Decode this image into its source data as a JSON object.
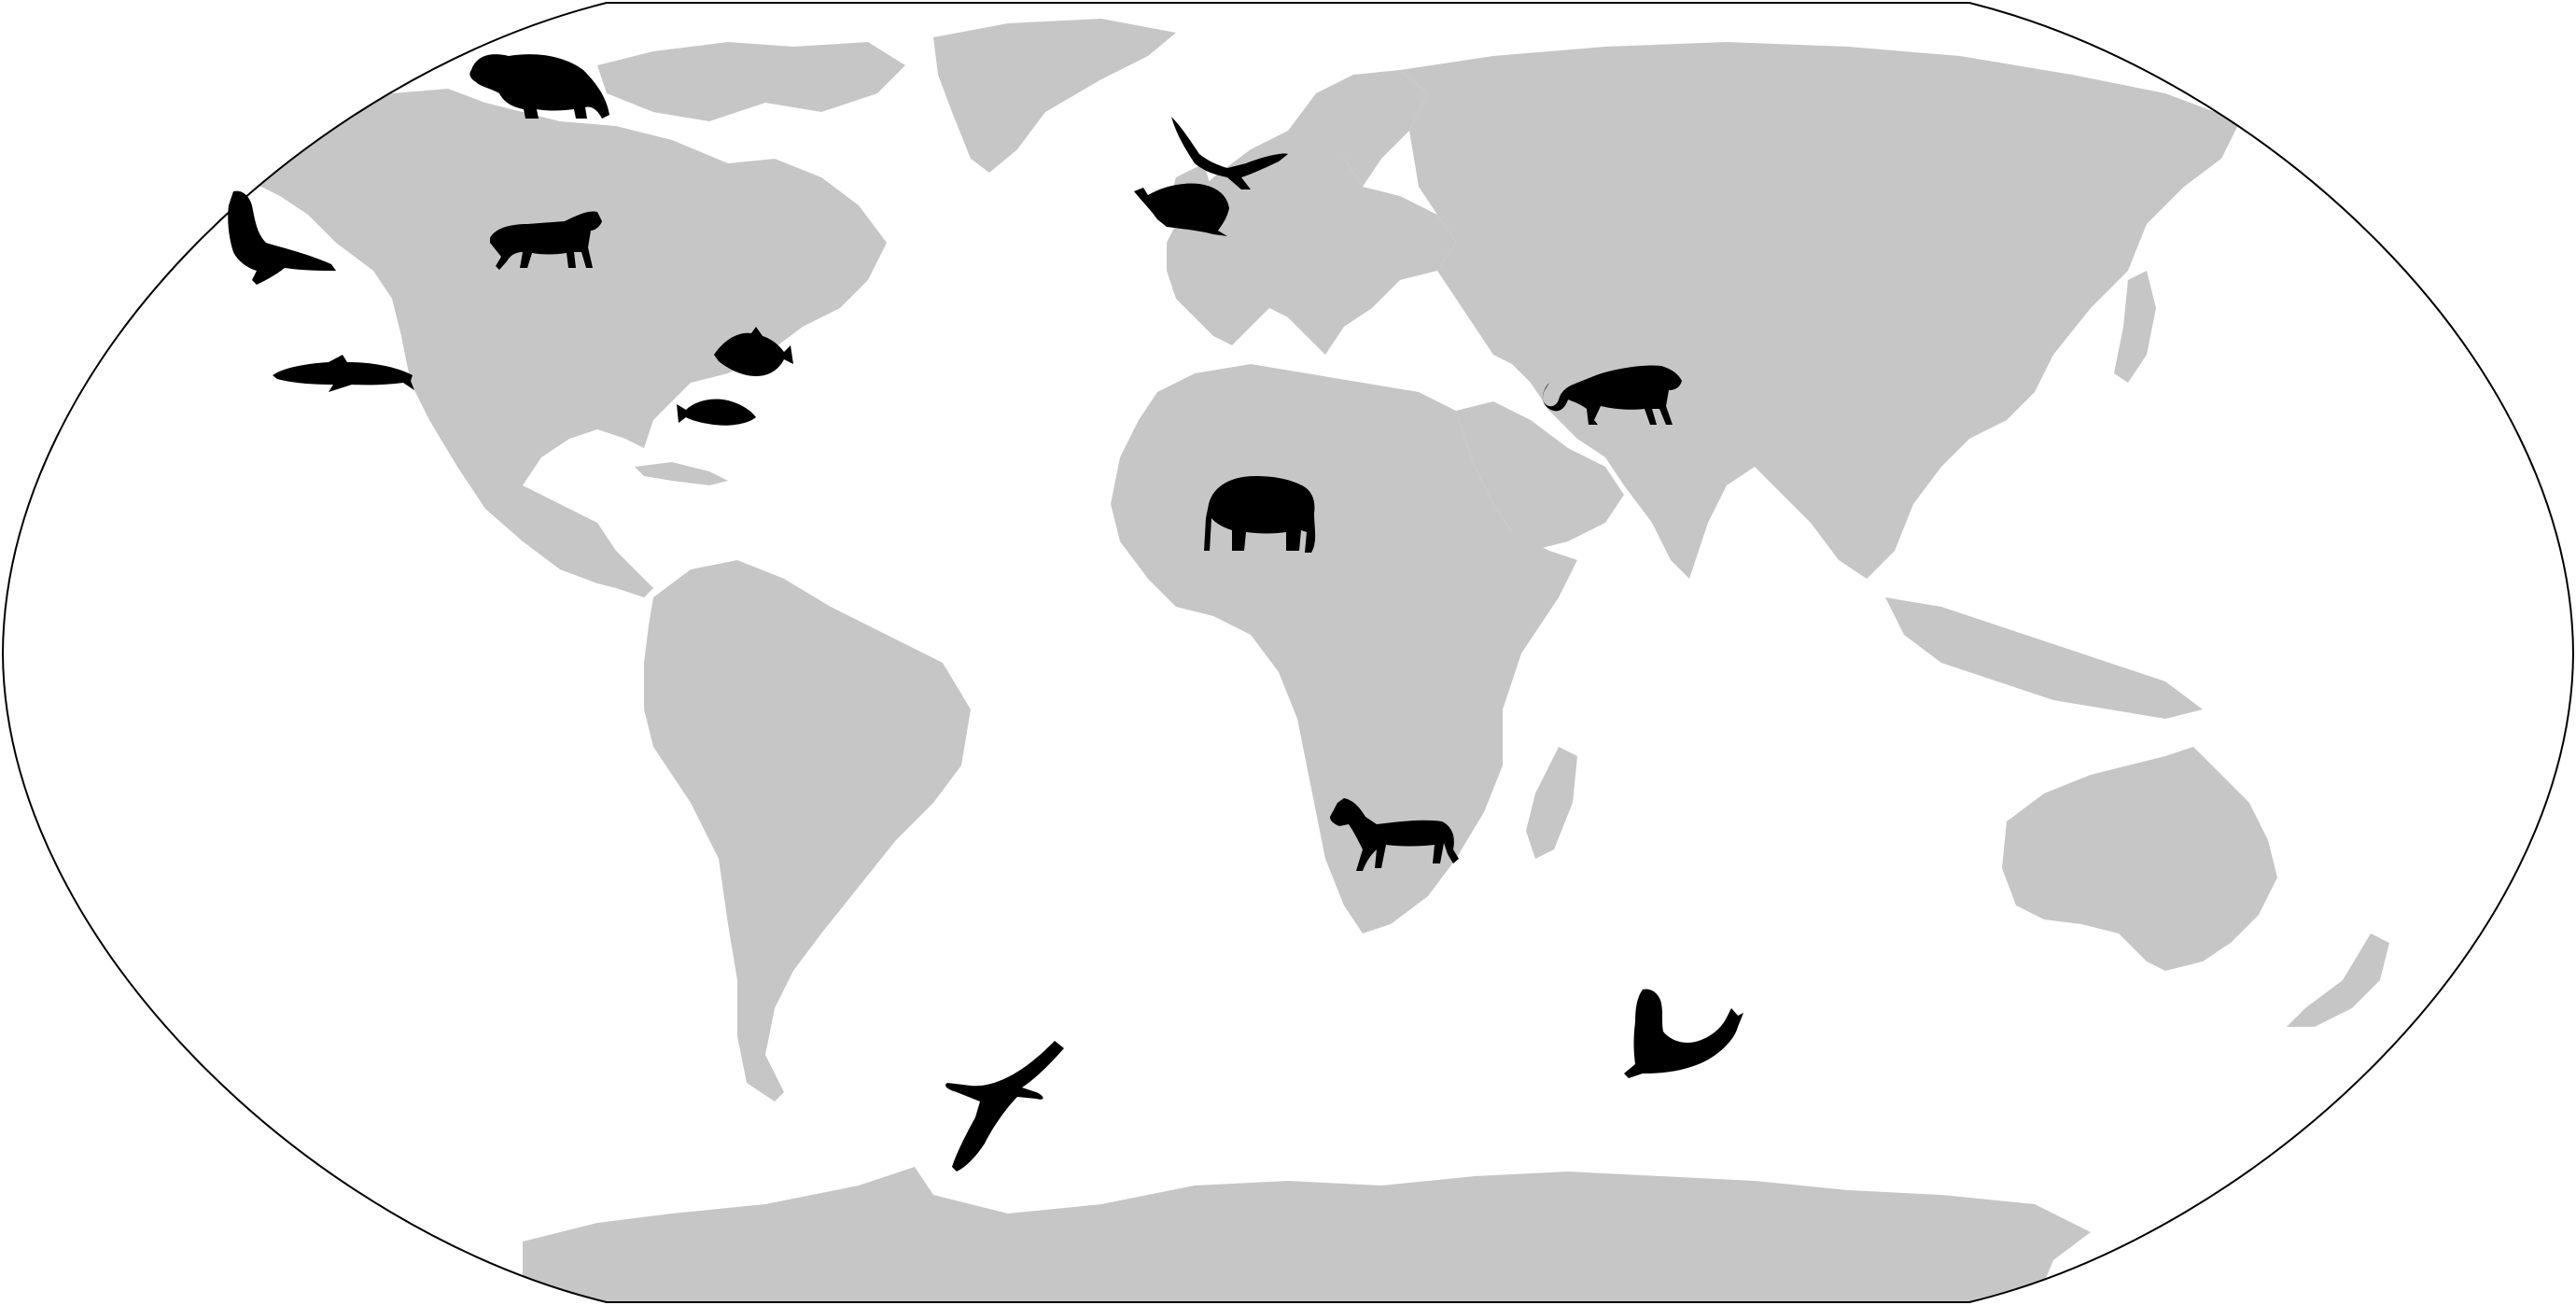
{
  "map": {
    "projection": "robinson",
    "land_color": "#c6c6c6",
    "ocean_color": "#ffffff",
    "outline_color": "#000000",
    "animals": [
      {
        "name": "polar-bear-icon",
        "region": "arctic-canada"
      },
      {
        "name": "sea-lion-icon",
        "region": "north-pacific"
      },
      {
        "name": "wolf-icon",
        "region": "canada"
      },
      {
        "name": "dolphin-icon",
        "region": "east-pacific"
      },
      {
        "name": "fish-icon",
        "region": "north-atlantic"
      },
      {
        "name": "fish-icon",
        "region": "caribbean"
      },
      {
        "name": "bird-icon",
        "region": "north-atlantic"
      },
      {
        "name": "seal-icon",
        "region": "north-sea"
      },
      {
        "name": "elephant-icon",
        "region": "west-africa"
      },
      {
        "name": "leopard-icon",
        "region": "iran"
      },
      {
        "name": "zebra-icon",
        "region": "southern-africa"
      },
      {
        "name": "albatross-icon",
        "region": "south-atlantic"
      },
      {
        "name": "elephant-seal-icon",
        "region": "southern-ocean"
      }
    ]
  }
}
